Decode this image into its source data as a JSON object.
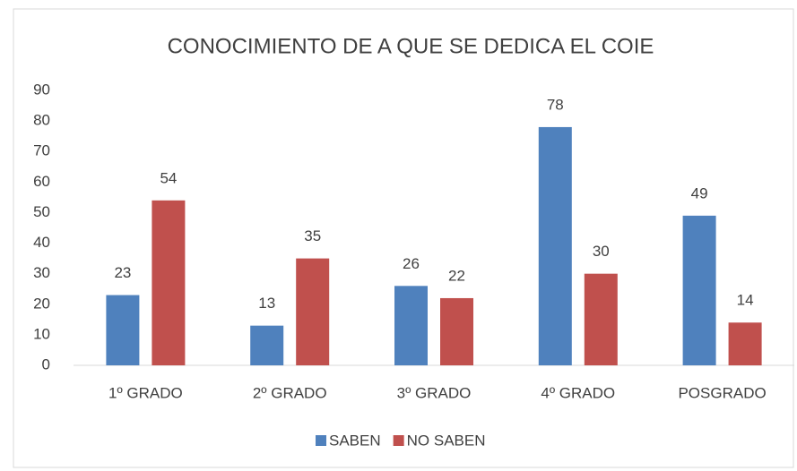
{
  "chart_data": {
    "type": "bar",
    "title": "CONOCIMIENTO DE A QUE SE DEDICA EL COIE",
    "categories": [
      "1º GRADO",
      "2º GRADO",
      "3º GRADO",
      "4º GRADO",
      "POSGRADO"
    ],
    "series": [
      {
        "name": "SABEN",
        "color": "#4f81bd",
        "values": [
          23,
          13,
          26,
          78,
          49
        ]
      },
      {
        "name": "NO SABEN",
        "color": "#c0504d",
        "values": [
          54,
          35,
          22,
          30,
          14
        ]
      }
    ],
    "ylim": [
      0,
      90
    ],
    "yticks": [
      0,
      10,
      20,
      30,
      40,
      50,
      60,
      70,
      80,
      90
    ],
    "grid": false,
    "legend": "bottom"
  }
}
